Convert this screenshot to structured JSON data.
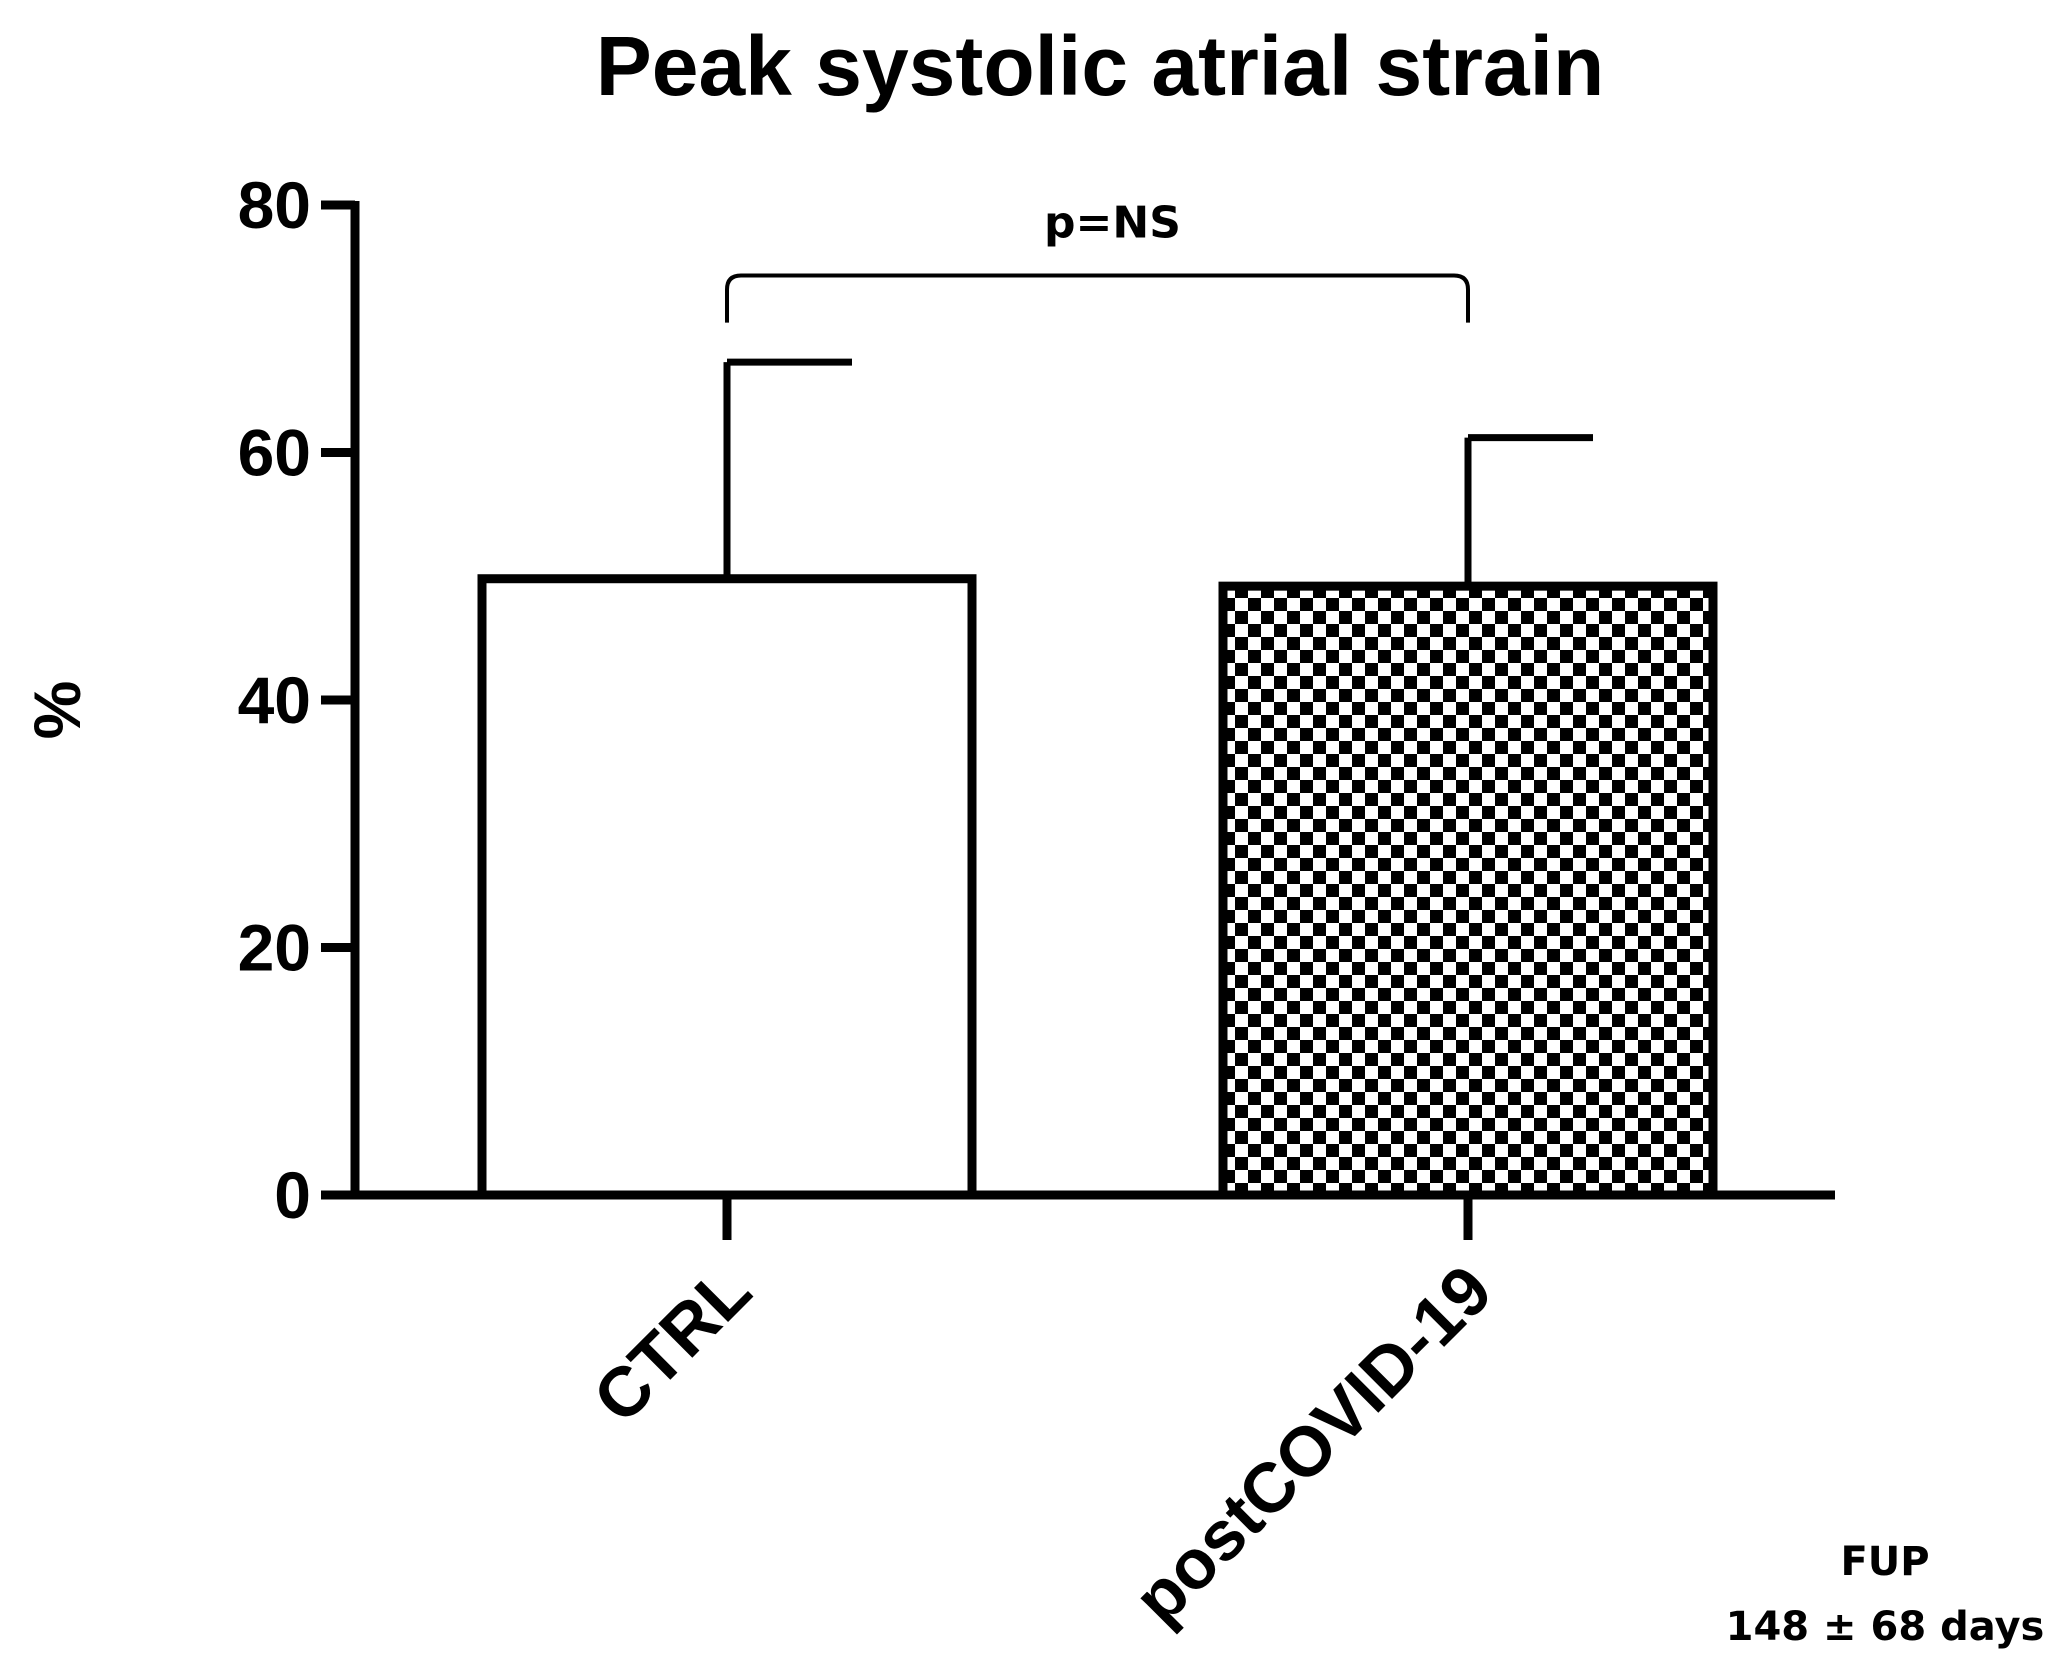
{
  "chart_data": {
    "type": "bar",
    "title": "Peak systolic atrial strain",
    "xlabel": "",
    "ylabel": "%",
    "ylim": [
      0,
      80
    ],
    "yticks": [
      0,
      20,
      40,
      60,
      80
    ],
    "categories": [
      "CTRL",
      "postCOVID-19"
    ],
    "values": [
      49.8,
      49.2
    ],
    "error_upper": [
      67.3,
      61.2
    ],
    "bar_fills": [
      "white",
      "checkerboard"
    ],
    "significance": {
      "pair": [
        0,
        1
      ],
      "label": "p=NS"
    },
    "notes": [
      "FUP",
      "148 ± 68 days"
    ],
    "grid": false,
    "legend": "none",
    "colors": {
      "stroke": "#000000",
      "background": "#ffffff"
    }
  }
}
